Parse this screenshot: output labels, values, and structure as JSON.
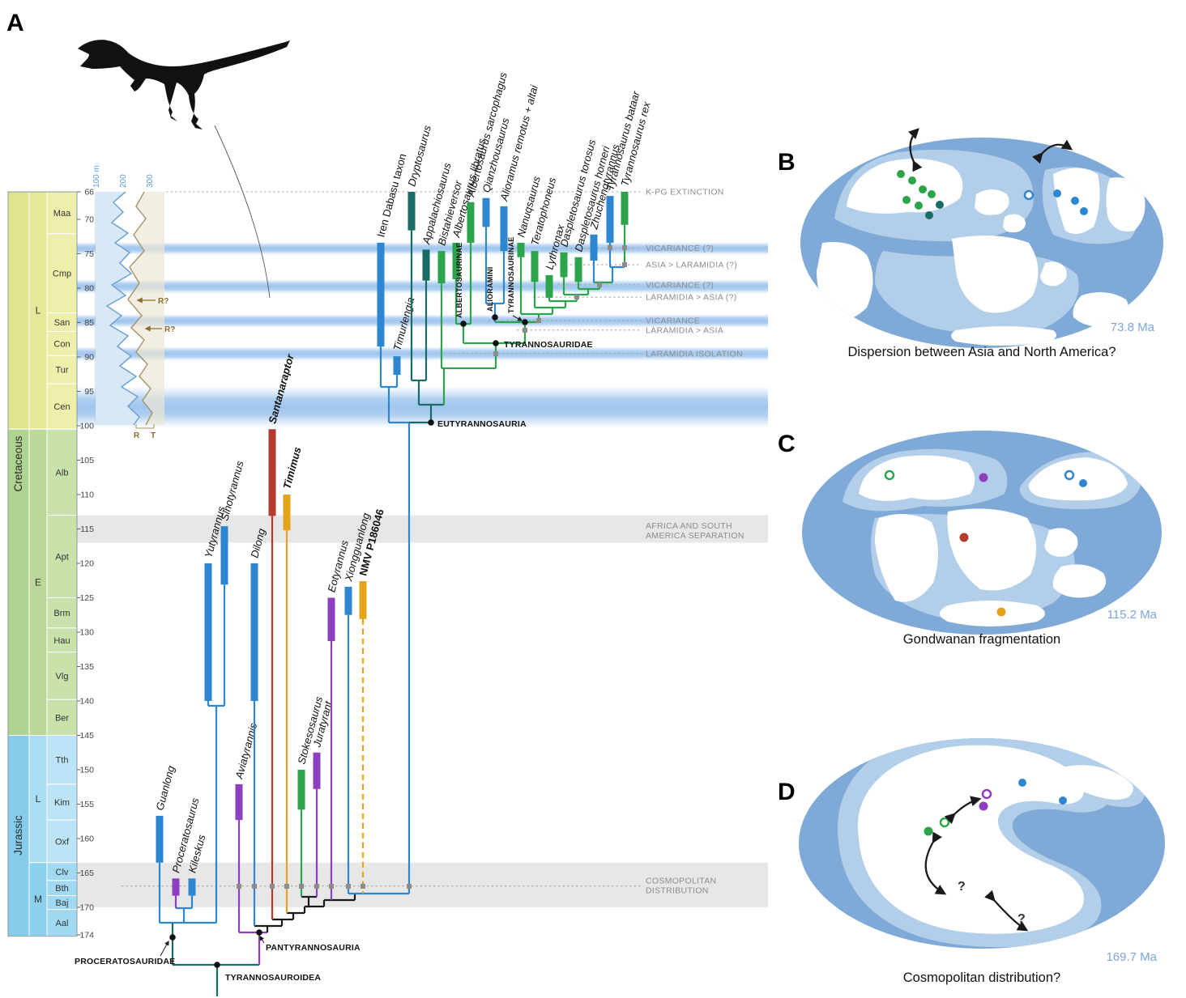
{
  "palette": {
    "asia": "#2E86D0",
    "europe": "#8E3FBF",
    "laramidia": "#2CA44C",
    "appalachia": "#1A6B66",
    "south_america": "#B23A2E",
    "australia": "#E3A41C"
  },
  "figure": {
    "panel_a": "A",
    "panel_b": "B",
    "panel_c": "C",
    "panel_d": "D"
  },
  "timescale": {
    "periods": [
      {
        "name": "Cretaceous"
      },
      {
        "name": "Jurassic"
      }
    ],
    "epochs": [
      {
        "abbr": "L",
        "from_ma": 66,
        "to_ma": 100.5,
        "group": "lk"
      },
      {
        "abbr": "E",
        "from_ma": 100.5,
        "to_ma": 145,
        "group": "ek"
      },
      {
        "abbr": "L",
        "from_ma": 145,
        "to_ma": 163.5,
        "group": "lj"
      },
      {
        "abbr": "M",
        "from_ma": 163.5,
        "to_ma": 174.2,
        "group": "mj"
      }
    ],
    "stages": [
      {
        "abbr": "Maa",
        "from_ma": 66,
        "to_ma": 72.1,
        "group": "lk"
      },
      {
        "abbr": "Cmp",
        "from_ma": 72.1,
        "to_ma": 83.6,
        "group": "lk"
      },
      {
        "abbr": "San",
        "from_ma": 83.6,
        "to_ma": 86.3,
        "group": "lk"
      },
      {
        "abbr": "Con",
        "from_ma": 86.3,
        "to_ma": 89.8,
        "group": "lk"
      },
      {
        "abbr": "Tur",
        "from_ma": 89.8,
        "to_ma": 93.9,
        "group": "lk"
      },
      {
        "abbr": "Cen",
        "from_ma": 93.9,
        "to_ma": 100.5,
        "group": "lk"
      },
      {
        "abbr": "Alb",
        "from_ma": 100.5,
        "to_ma": 113,
        "group": "ek"
      },
      {
        "abbr": "Apt",
        "from_ma": 113,
        "to_ma": 125,
        "group": "ek"
      },
      {
        "abbr": "Brm",
        "from_ma": 125,
        "to_ma": 129.4,
        "group": "ek"
      },
      {
        "abbr": "Hau",
        "from_ma": 129.4,
        "to_ma": 132.9,
        "group": "ek"
      },
      {
        "abbr": "Vlg",
        "from_ma": 132.9,
        "to_ma": 139.8,
        "group": "ek"
      },
      {
        "abbr": "Ber",
        "from_ma": 139.8,
        "to_ma": 145,
        "group": "ek"
      },
      {
        "abbr": "Tth",
        "from_ma": 145,
        "to_ma": 152.1,
        "group": "lj"
      },
      {
        "abbr": "Kim",
        "from_ma": 152.1,
        "to_ma": 157.3,
        "group": "lj"
      },
      {
        "abbr": "Oxf",
        "from_ma": 157.3,
        "to_ma": 163.5,
        "group": "lj"
      },
      {
        "abbr": "Clv",
        "from_ma": 163.5,
        "to_ma": 166.1,
        "group": "mj"
      },
      {
        "abbr": "Bth",
        "from_ma": 166.1,
        "to_ma": 168.3,
        "group": "mj"
      },
      {
        "abbr": "Baj",
        "from_ma": 168.3,
        "to_ma": 170.3,
        "group": "mj"
      },
      {
        "abbr": "Aal",
        "from_ma": 170.3,
        "to_ma": 174.2,
        "group": "mj"
      }
    ],
    "axis_ticks": [
      66,
      70,
      75,
      80,
      85,
      90,
      95,
      100,
      105,
      110,
      115,
      120,
      125,
      130,
      135,
      140,
      145,
      150,
      155,
      160,
      165,
      170,
      174
    ]
  },
  "sea_level_panel": {
    "depth_labels": [
      "100 m",
      "200",
      "300"
    ],
    "regression_labels": [
      "R?",
      "R?"
    ],
    "axis_bottom_labels": [
      "R",
      "T"
    ]
  },
  "tree": {
    "taxa": [
      {
        "name": "Guanlong",
        "region": "asia",
        "first_ma": 163.5,
        "last_ma": 156.7
      },
      {
        "name": "Proceratosaurus",
        "region": "europe",
        "first_ma": 168.3,
        "last_ma": 165.8
      },
      {
        "name": "Kileskus",
        "region": "asia",
        "first_ma": 168.3,
        "last_ma": 165.8
      },
      {
        "name": "Yutyrannus",
        "region": "asia",
        "first_ma": 140.0,
        "last_ma": 120.0
      },
      {
        "name": "Sinotyrannus",
        "region": "asia",
        "first_ma": 123.1,
        "last_ma": 114.6
      },
      {
        "name": "Aviatyrannis",
        "region": "europe",
        "first_ma": 157.3,
        "last_ma": 152.1
      },
      {
        "name": "Dilong",
        "region": "asia",
        "first_ma": 140.0,
        "last_ma": 120.0
      },
      {
        "name": "Santanaraptor",
        "region": "south_america",
        "first_ma": 113.1,
        "last_ma": 100.5,
        "bold": true
      },
      {
        "name": "Timimus",
        "region": "australia",
        "first_ma": 115.2,
        "last_ma": 110.0,
        "bold": true
      },
      {
        "name": "Stokesosaurus",
        "region": "laramidia",
        "first_ma": 155.8,
        "last_ma": 150.0
      },
      {
        "name": "Juratyrant",
        "region": "europe",
        "first_ma": 152.8,
        "last_ma": 147.5
      },
      {
        "name": "Eotyrannus",
        "region": "europe",
        "first_ma": 131.3,
        "last_ma": 125.0
      },
      {
        "name": "Xiongguanlong",
        "region": "asia",
        "first_ma": 127.5,
        "last_ma": 123.4
      },
      {
        "name": "NMV P186046",
        "region": "australia",
        "first_ma": 128.1,
        "last_ma": 122.6,
        "bold": true,
        "upright": true,
        "dashed": true
      },
      {
        "name": "Iren Dabasu taxon",
        "region": "asia",
        "first_ma": 88.5,
        "last_ma": 73.4,
        "upright": true
      },
      {
        "name": "Timurlengia",
        "region": "asia",
        "first_ma": 92.6,
        "last_ma": 89.9
      },
      {
        "name": "Dryptosaurus",
        "region": "appalachia",
        "first_ma": 71.6,
        "last_ma": 66.0
      },
      {
        "name": "Appalachiosaurus",
        "region": "appalachia",
        "first_ma": 78.9,
        "last_ma": 74.4
      },
      {
        "name": "Bistahieversor",
        "region": "laramidia",
        "first_ma": 79.3,
        "last_ma": 74.6
      },
      {
        "name": "Albertosaurus libratus",
        "region": "laramidia",
        "first_ma": 78.7,
        "last_ma": 73.4
      },
      {
        "name": "Albertosaurus sarcophagus",
        "region": "laramidia",
        "first_ma": 73.4,
        "last_ma": 67.5
      },
      {
        "name": "Qianzhousaurus",
        "region": "asia",
        "first_ma": 71.1,
        "last_ma": 66.9
      },
      {
        "name": "Alioramus remotus + altai",
        "region": "asia",
        "first_ma": 74.6,
        "last_ma": 68.1
      },
      {
        "name": "Nanuqsaurus",
        "region": "laramidia",
        "first_ma": 75.5,
        "last_ma": 73.4
      },
      {
        "name": "Teratophoneus",
        "region": "laramidia",
        "first_ma": 79.1,
        "last_ma": 74.6
      },
      {
        "name": "Lythronax",
        "region": "laramidia",
        "first_ma": 81.4,
        "last_ma": 78.1
      },
      {
        "name": "Daspletosaurus torosus",
        "region": "laramidia",
        "first_ma": 78.4,
        "last_ma": 74.8
      },
      {
        "name": "Daspletosaurus horneri",
        "region": "laramidia",
        "first_ma": 79.1,
        "last_ma": 75.5
      },
      {
        "name": "Zhuchengtyrannus",
        "region": "asia",
        "first_ma": 76.0,
        "last_ma": 72.2
      },
      {
        "name": "Tyrannosaurus bataar",
        "region": "asia",
        "first_ma": 73.4,
        "last_ma": 66.6
      },
      {
        "name": "Tyrannosaurus rex",
        "region": "laramidia",
        "first_ma": 70.8,
        "last_ma": 66.0
      }
    ],
    "clade_labels": {
      "proceratosauridae": "PROCERATOSAURIDAE",
      "tyrannosauroidea": "TYRANNOSAUROIDEA",
      "pantyrannosauria": "PANTYRANNOSAURIA",
      "eutyrannosauria": "EUTYRANNOSAURIA",
      "tyrannosauridae": "TYRANNOSAURIDAE",
      "albertosaurinae": "ALBERTOSAURINAE",
      "alioramini": "ALIORAMINI",
      "tyrannosaurinae": "TYRANNOSAURINAE"
    }
  },
  "events": [
    {
      "label": "K-PG EXTINCTION",
      "ma": 66
    },
    {
      "label": "VICARIANCE (?)",
      "ma": 74.2
    },
    {
      "label": "ASIA > LARAMIDIA (?)",
      "ma": 76.6
    },
    {
      "label": "VICARIANCE (?)",
      "ma": 79.5
    },
    {
      "label": "LARAMIDIA > ASIA (?)",
      "ma": 81.3
    },
    {
      "label": "VICARIANCE",
      "ma": 84.7
    },
    {
      "label": "LARAMIDIA > ASIA",
      "ma": 86.1
    },
    {
      "label": "LARAMIDIA ISOLATION",
      "ma": 89.5
    },
    {
      "lines": [
        "AFRICA AND SOUTH",
        "AMERICA SEPARATION"
      ],
      "ma": 115.3,
      "no_line": true
    },
    {
      "lines": [
        "COSMOPOLITAN",
        "DISTRIBUTION"
      ],
      "ma": 166.9
    }
  ],
  "maps": {
    "b": {
      "age_label": "73.8 Ma",
      "caption": "Dispersion between Asia and North America?"
    },
    "c": {
      "age_label": "115.2 Ma",
      "caption": "Gondwanan fragmentation"
    },
    "d": {
      "age_label": "169.7 Ma",
      "caption": "Cosmopolitan distribution?",
      "question_marks": [
        "?",
        "?"
      ]
    }
  }
}
